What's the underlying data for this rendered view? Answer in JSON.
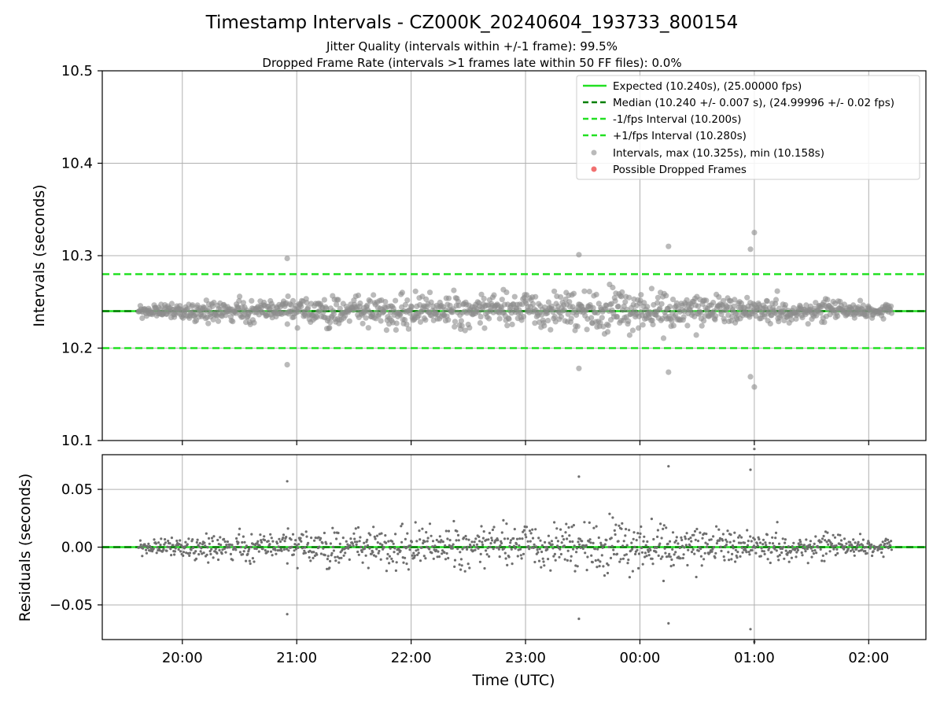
{
  "chart_data": [
    {
      "type": "scatter",
      "panel": "intervals",
      "title": "Timestamp Intervals - CZ000K_20240604_193733_800154",
      "subtitle_lines": [
        "Jitter Quality (intervals within +/-1 frame): 99.5%",
        "Dropped Frame Rate (intervals >1 frames late within 50 FF files): 0.0%"
      ],
      "ylabel": "Intervals (seconds)",
      "ylim": [
        10.1,
        10.5
      ],
      "yticks": [
        10.1,
        10.2,
        10.3,
        10.4,
        10.5
      ],
      "ytick_labels": [
        "10.1",
        "10.2",
        "10.3",
        "10.4",
        "10.5"
      ],
      "xlim": [
        "19:18",
        "02:30"
      ],
      "grid": true,
      "legend_position": "top-right",
      "reference_lines": [
        {
          "name": "Expected (10.240s), (25.00000 fps)",
          "y": 10.24,
          "style": "solid",
          "color": "#22e022"
        },
        {
          "name": "Median (10.240 +/- 0.007 s), (24.99996 +/- 0.02 fps)",
          "y": 10.24,
          "style": "dashed",
          "color": "#007f00"
        },
        {
          "name": "-1/fps Interval (10.200s)",
          "y": 10.2,
          "style": "dashed",
          "color": "#22e022"
        },
        {
          "name": "+1/fps Interval (10.280s)",
          "y": 10.28,
          "style": "dashed",
          "color": "#22e022"
        }
      ],
      "series": [
        {
          "name": "Intervals, max (10.325s), min (10.158s)",
          "color": "#8c8c8c",
          "marker": "circle"
        },
        {
          "name": "Possible Dropped Frames",
          "color": "#f06060",
          "marker": "circle"
        }
      ],
      "time_range": [
        "19:37",
        "02:12"
      ],
      "noted_outliers": [
        {
          "x": "20:55",
          "y": 10.297
        },
        {
          "x": "20:55",
          "y": 10.182
        },
        {
          "x": "23:28",
          "y": 10.301
        },
        {
          "x": "23:28",
          "y": 10.178
        },
        {
          "x": "00:15",
          "y": 10.31
        },
        {
          "x": "00:15",
          "y": 10.174
        },
        {
          "x": "00:58",
          "y": 10.307
        },
        {
          "x": "00:58",
          "y": 10.169
        },
        {
          "x": "01:00",
          "y": 10.325
        },
        {
          "x": "01:00",
          "y": 10.158
        }
      ]
    },
    {
      "type": "scatter",
      "panel": "residuals",
      "ylabel": "Residuals (seconds)",
      "xlabel": "Time (UTC)",
      "ylim": [
        -0.08,
        0.08
      ],
      "yticks": [
        -0.05,
        0.0,
        0.05
      ],
      "ytick_labels": [
        "−0.05",
        "0.00",
        "0.05"
      ],
      "xticks": [
        "20:00",
        "21:00",
        "22:00",
        "23:00",
        "00:00",
        "01:00",
        "02:00"
      ],
      "xlim": [
        "19:18",
        "02:30"
      ],
      "grid": true,
      "reference_lines": [
        {
          "y": 0.0,
          "style": "solid",
          "color": "#22e022"
        },
        {
          "y": 0.0,
          "style": "dashed",
          "color": "#007f00"
        }
      ],
      "series": [
        {
          "name": "Residuals",
          "color": "#6e6e6e",
          "marker": "point"
        }
      ]
    }
  ]
}
